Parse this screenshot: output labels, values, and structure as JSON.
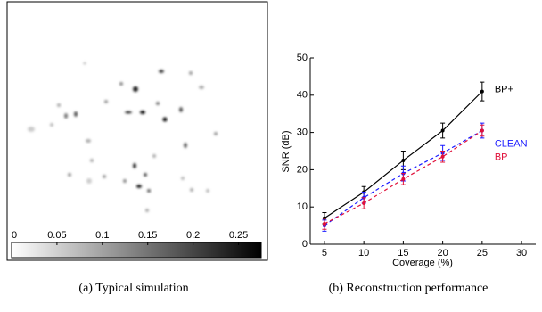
{
  "chart_data": [
    {
      "type": "image",
      "caption": "(a) Typical simulation",
      "colorbar_lim": [
        0,
        0.275
      ],
      "colorbar_ticks": [
        0,
        0.05,
        0.1,
        0.15,
        0.2,
        0.25
      ]
    },
    {
      "type": "line",
      "caption": "(b) Reconstruction performance",
      "x_label": "Coverage (%)",
      "y_label": "SNR (dB)",
      "x": [
        5,
        10,
        15,
        20,
        25
      ],
      "xlim": [
        3.2,
        31.8
      ],
      "xticks": [
        5,
        10,
        15,
        20,
        25,
        30
      ],
      "ylim": [
        0,
        50
      ],
      "yticks": [
        0,
        10,
        20,
        30,
        40,
        50
      ],
      "series": [
        {
          "name": "BP+",
          "color": "#000000",
          "dashed": false,
          "values": [
            7,
            14,
            22.5,
            30.5,
            41
          ],
          "errors": [
            1.5,
            1.5,
            2.5,
            2,
            2.5
          ]
        },
        {
          "name": "CLEAN",
          "color": "#1a1aff",
          "dashed": true,
          "values": [
            5,
            12.5,
            19,
            24.5,
            30.5
          ],
          "errors": [
            1.5,
            1.5,
            2,
            2,
            2
          ]
        },
        {
          "name": "BP",
          "color": "#e0103a",
          "dashed": true,
          "values": [
            5.5,
            11,
            17.5,
            23.5,
            30.5
          ],
          "errors": [
            1.5,
            1.5,
            1.5,
            1.5,
            1.5
          ]
        }
      ]
    }
  ]
}
